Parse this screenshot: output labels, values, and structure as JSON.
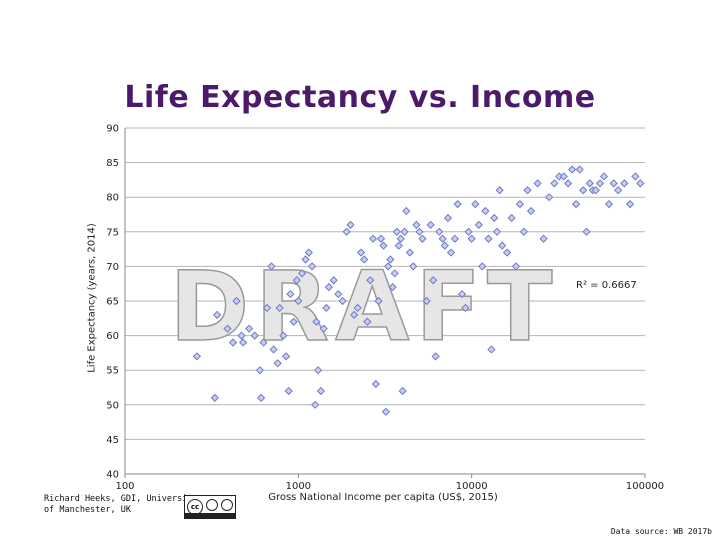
{
  "chart_data": {
    "type": "scatter",
    "title": "Life Expectancy vs. Income",
    "xlabel": "Gross National Income per capita (US$, 2015)",
    "ylabel": "Life Expectancy (years, 2014)",
    "xscale": "log",
    "xlim": [
      100,
      100000
    ],
    "ylim": [
      40,
      90
    ],
    "x_ticks": [
      "100",
      "1000",
      "10000",
      "100000"
    ],
    "y_ticks": [
      "40",
      "45",
      "50",
      "55",
      "60",
      "65",
      "70",
      "75",
      "80",
      "85",
      "90"
    ],
    "grid": "horizontal",
    "marker_color": "#6f7ac8",
    "watermark": "DRAFT",
    "annotation": "R² = 0.6667",
    "points": [
      [
        260,
        57
      ],
      [
        330,
        51
      ],
      [
        340,
        63
      ],
      [
        390,
        61
      ],
      [
        420,
        59
      ],
      [
        440,
        65
      ],
      [
        470,
        60
      ],
      [
        480,
        59
      ],
      [
        520,
        61
      ],
      [
        560,
        60
      ],
      [
        600,
        55
      ],
      [
        610,
        51
      ],
      [
        630,
        59
      ],
      [
        660,
        64
      ],
      [
        700,
        70
      ],
      [
        720,
        58
      ],
      [
        760,
        56
      ],
      [
        780,
        64
      ],
      [
        820,
        60
      ],
      [
        850,
        57
      ],
      [
        880,
        52
      ],
      [
        900,
        66
      ],
      [
        940,
        62
      ],
      [
        980,
        68
      ],
      [
        1000,
        65
      ],
      [
        1050,
        69
      ],
      [
        1100,
        71
      ],
      [
        1150,
        72
      ],
      [
        1200,
        70
      ],
      [
        1250,
        50
      ],
      [
        1270,
        62
      ],
      [
        1300,
        55
      ],
      [
        1350,
        52
      ],
      [
        1400,
        61
      ],
      [
        1450,
        64
      ],
      [
        1500,
        67
      ],
      [
        1600,
        68
      ],
      [
        1700,
        66
      ],
      [
        1800,
        65
      ],
      [
        1900,
        75
      ],
      [
        2000,
        76
      ],
      [
        2100,
        63
      ],
      [
        2200,
        64
      ],
      [
        2300,
        72
      ],
      [
        2400,
        71
      ],
      [
        2500,
        62
      ],
      [
        2600,
        68
      ],
      [
        2700,
        74
      ],
      [
        2800,
        53
      ],
      [
        2900,
        65
      ],
      [
        3000,
        74
      ],
      [
        3100,
        73
      ],
      [
        3200,
        49
      ],
      [
        3300,
        70
      ],
      [
        3400,
        71
      ],
      [
        3500,
        67
      ],
      [
        3600,
        69
      ],
      [
        3700,
        75
      ],
      [
        3800,
        73
      ],
      [
        3900,
        74
      ],
      [
        4000,
        52
      ],
      [
        4100,
        75
      ],
      [
        4200,
        78
      ],
      [
        4400,
        72
      ],
      [
        4600,
        70
      ],
      [
        4800,
        76
      ],
      [
        5000,
        75
      ],
      [
        5200,
        74
      ],
      [
        5500,
        65
      ],
      [
        5800,
        76
      ],
      [
        6000,
        68
      ],
      [
        6200,
        57
      ],
      [
        6500,
        75
      ],
      [
        6800,
        74
      ],
      [
        7000,
        73
      ],
      [
        7300,
        77
      ],
      [
        7600,
        72
      ],
      [
        8000,
        74
      ],
      [
        8300,
        79
      ],
      [
        8800,
        66
      ],
      [
        9200,
        64
      ],
      [
        9600,
        75
      ],
      [
        10000,
        74
      ],
      [
        10500,
        79
      ],
      [
        11000,
        76
      ],
      [
        11500,
        70
      ],
      [
        12000,
        78
      ],
      [
        12500,
        74
      ],
      [
        13000,
        58
      ],
      [
        13500,
        77
      ],
      [
        14000,
        75
      ],
      [
        14500,
        81
      ],
      [
        15000,
        73
      ],
      [
        16000,
        72
      ],
      [
        17000,
        77
      ],
      [
        18000,
        70
      ],
      [
        19000,
        79
      ],
      [
        20000,
        75
      ],
      [
        21000,
        81
      ],
      [
        22000,
        78
      ],
      [
        24000,
        82
      ],
      [
        26000,
        74
      ],
      [
        28000,
        80
      ],
      [
        30000,
        82
      ],
      [
        32000,
        83
      ],
      [
        34000,
        83
      ],
      [
        36000,
        82
      ],
      [
        38000,
        84
      ],
      [
        40000,
        79
      ],
      [
        42000,
        84
      ],
      [
        44000,
        81
      ],
      [
        46000,
        75
      ],
      [
        48000,
        82
      ],
      [
        50000,
        81
      ],
      [
        52000,
        81
      ],
      [
        55000,
        82
      ],
      [
        58000,
        83
      ],
      [
        62000,
        79
      ],
      [
        66000,
        82
      ],
      [
        70000,
        81
      ],
      [
        76000,
        82
      ],
      [
        82000,
        79
      ],
      [
        88000,
        83
      ],
      [
        94000,
        82
      ]
    ]
  },
  "credit": {
    "line1": "Richard Heeks, GDI, University",
    "line2": "of Manchester, UK"
  },
  "license_badge": "cc",
  "source_note": "Data source: WB 2017b"
}
